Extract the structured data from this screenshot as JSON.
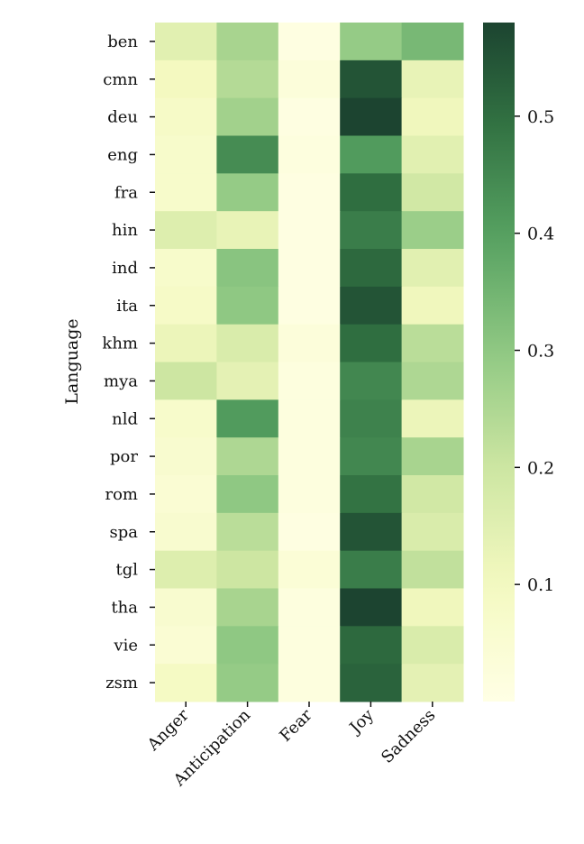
{
  "chart_data": {
    "type": "heatmap",
    "title": "",
    "xlabel": "",
    "ylabel": "Language",
    "x_categories": [
      "Anger",
      "Anticipation",
      "Fear",
      "Joy",
      "Sadness"
    ],
    "y_categories": [
      "ben",
      "cmn",
      "deu",
      "eng",
      "fra",
      "hin",
      "ind",
      "ita",
      "khm",
      "mya",
      "nld",
      "por",
      "rom",
      "spa",
      "tgl",
      "tha",
      "vie",
      "zsm"
    ],
    "values": [
      [
        0.15,
        0.26,
        0.01,
        0.29,
        0.34
      ],
      [
        0.1,
        0.24,
        0.03,
        0.55,
        0.13
      ],
      [
        0.08,
        0.27,
        0.01,
        0.58,
        0.11
      ],
      [
        0.07,
        0.44,
        0.02,
        0.41,
        0.15
      ],
      [
        0.07,
        0.29,
        0.01,
        0.5,
        0.19
      ],
      [
        0.16,
        0.13,
        0.01,
        0.47,
        0.28
      ],
      [
        0.07,
        0.31,
        0.01,
        0.51,
        0.15
      ],
      [
        0.08,
        0.3,
        0.01,
        0.55,
        0.11
      ],
      [
        0.12,
        0.17,
        0.03,
        0.5,
        0.23
      ],
      [
        0.2,
        0.14,
        0.02,
        0.45,
        0.25
      ],
      [
        0.07,
        0.41,
        0.02,
        0.46,
        0.12
      ],
      [
        0.06,
        0.25,
        0.02,
        0.45,
        0.26
      ],
      [
        0.05,
        0.3,
        0.02,
        0.49,
        0.19
      ],
      [
        0.06,
        0.23,
        0.01,
        0.55,
        0.17
      ],
      [
        0.16,
        0.2,
        0.04,
        0.47,
        0.22
      ],
      [
        0.06,
        0.26,
        0.02,
        0.58,
        0.11
      ],
      [
        0.05,
        0.3,
        0.02,
        0.51,
        0.17
      ],
      [
        0.09,
        0.29,
        0.02,
        0.52,
        0.14
      ]
    ],
    "colorbar": {
      "range": [
        0.0,
        0.58
      ],
      "ticks": [
        0.1,
        0.2,
        0.3,
        0.4,
        0.5
      ],
      "tick_labels": [
        "0.1",
        "0.2",
        "0.3",
        "0.4",
        "0.5"
      ],
      "colormap": "YlGn",
      "color_stops": [
        [
          0.0,
          "#ffffe5"
        ],
        [
          0.1,
          "#f4f9c0"
        ],
        [
          0.2,
          "#cde6a2"
        ],
        [
          0.3,
          "#8fc883"
        ],
        [
          0.4,
          "#55a060"
        ],
        [
          0.5,
          "#2f6e40"
        ],
        [
          0.58,
          "#1c4430"
        ]
      ]
    },
    "grid": false,
    "legend": "colorbar-right"
  }
}
